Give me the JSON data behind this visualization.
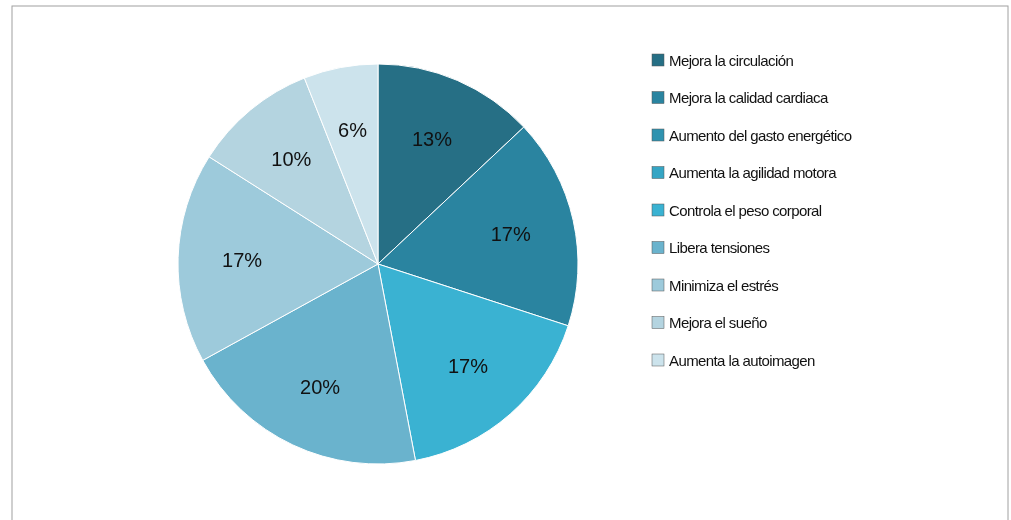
{
  "chart_data": {
    "type": "pie",
    "categories": [
      "Mejora la circulación",
      "Mejora la calidad cardiaca",
      "Aumento del gasto energético",
      "Aumenta la agilidad motora",
      "Controla el peso corporal",
      "Libera tensiones",
      "Minimiza el estrés",
      "Mejora el sueño",
      "Aumenta la autoimagen"
    ],
    "values": [
      13,
      17,
      0,
      0,
      17,
      20,
      17,
      10,
      6
    ],
    "value_labels": [
      "13%",
      "17%",
      null,
      null,
      "17%",
      "20%",
      "17%",
      "10%",
      "6%"
    ],
    "colors": [
      "#266f85",
      "#2a84a0",
      "#2f93b0",
      "#35a5c4",
      "#3ab2d2",
      "#6ab3cd",
      "#9dcadb",
      "#b4d4e0",
      "#cce3ec"
    ],
    "legend": "right"
  }
}
